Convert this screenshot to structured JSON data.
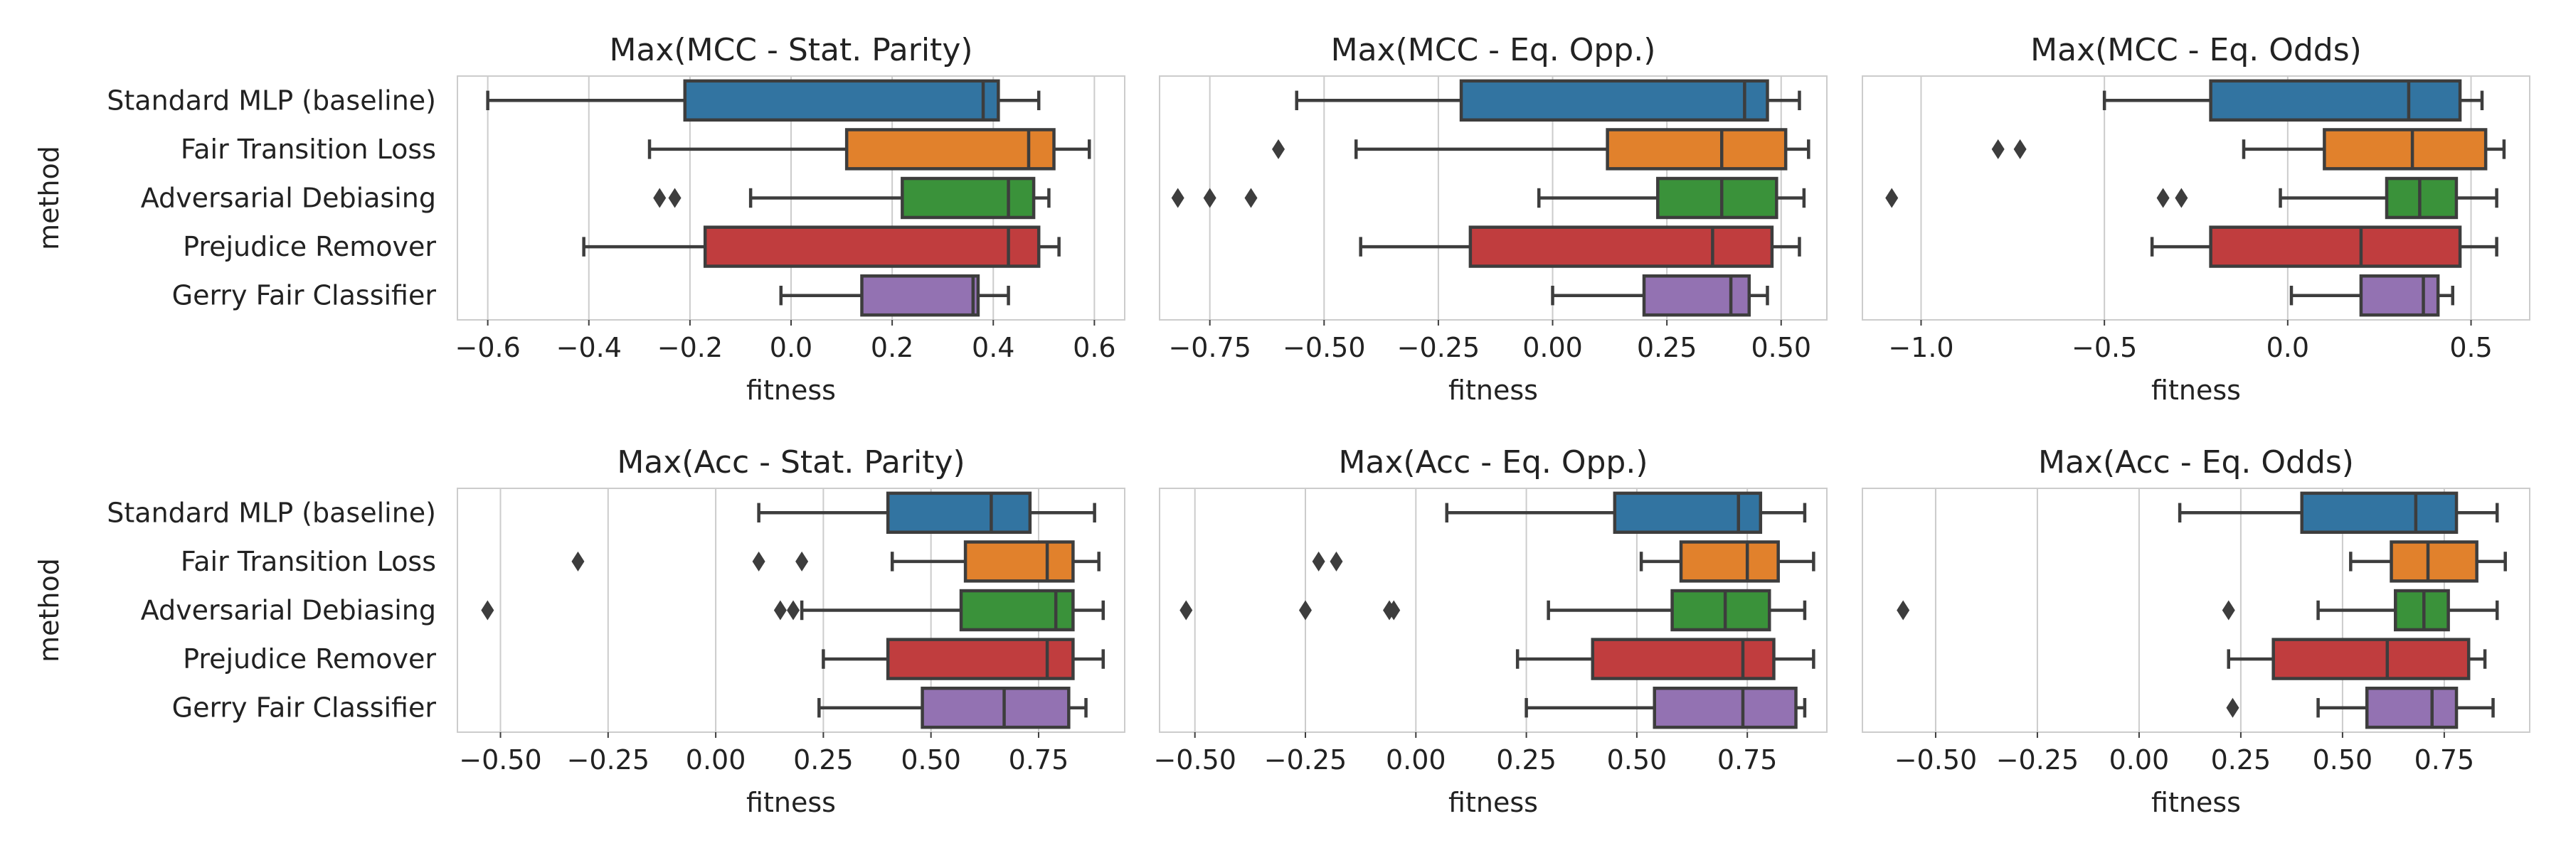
{
  "figure": {
    "ylabel_shared": "method"
  },
  "chart_data": [
    {
      "type": "box",
      "title": "Max(MCC - Stat. Parity)",
      "xlabel": "fitness",
      "ylabel": "method",
      "xlim": [
        -0.66,
        0.66
      ],
      "xticks": [
        -0.6,
        -0.4,
        -0.2,
        0.0,
        0.2,
        0.4,
        0.6
      ],
      "xtick_labels": [
        "−0.6",
        "−0.4",
        "−0.2",
        "0.0",
        "0.2",
        "0.4",
        "0.6"
      ],
      "grid": true,
      "categories": [
        "Standard MLP (baseline)",
        "Fair Transition Loss",
        "Adversarial Debiasing",
        "Prejudice Remover",
        "Gerry Fair Classifier"
      ],
      "boxes": [
        {
          "whislo": -0.6,
          "q1": -0.21,
          "med": 0.38,
          "q3": 0.41,
          "whishi": 0.49,
          "fliers": []
        },
        {
          "whislo": -0.28,
          "q1": 0.11,
          "med": 0.47,
          "q3": 0.52,
          "whishi": 0.59,
          "fliers": []
        },
        {
          "whislo": -0.08,
          "q1": 0.22,
          "med": 0.43,
          "q3": 0.48,
          "whishi": 0.51,
          "fliers": [
            -0.26,
            -0.23
          ]
        },
        {
          "whislo": -0.41,
          "q1": -0.17,
          "med": 0.43,
          "q3": 0.49,
          "whishi": 0.53,
          "fliers": []
        },
        {
          "whislo": -0.02,
          "q1": 0.14,
          "med": 0.36,
          "q3": 0.37,
          "whishi": 0.43,
          "fliers": []
        }
      ]
    },
    {
      "type": "box",
      "title": "Max(MCC - Eq. Opp.)",
      "xlabel": "fitness",
      "ylabel": "",
      "xlim": [
        -0.86,
        0.6
      ],
      "xticks": [
        -0.75,
        -0.5,
        -0.25,
        0.0,
        0.25,
        0.5
      ],
      "xtick_labels": [
        "−0.75",
        "−0.50",
        "−0.25",
        "0.00",
        "0.25",
        "0.50"
      ],
      "grid": true,
      "categories": [
        "Standard MLP (baseline)",
        "Fair Transition Loss",
        "Adversarial Debiasing",
        "Prejudice Remover",
        "Gerry Fair Classifier"
      ],
      "boxes": [
        {
          "whislo": -0.56,
          "q1": -0.2,
          "med": 0.42,
          "q3": 0.47,
          "whishi": 0.54,
          "fliers": []
        },
        {
          "whislo": -0.43,
          "q1": 0.12,
          "med": 0.37,
          "q3": 0.51,
          "whishi": 0.56,
          "fliers": [
            -0.6
          ]
        },
        {
          "whislo": -0.03,
          "q1": 0.23,
          "med": 0.37,
          "q3": 0.49,
          "whishi": 0.55,
          "fliers": [
            -0.82,
            -0.75,
            -0.66
          ]
        },
        {
          "whislo": -0.42,
          "q1": -0.18,
          "med": 0.35,
          "q3": 0.48,
          "whishi": 0.54,
          "fliers": []
        },
        {
          "whislo": 0.0,
          "q1": 0.2,
          "med": 0.39,
          "q3": 0.43,
          "whishi": 0.47,
          "fliers": []
        }
      ]
    },
    {
      "type": "box",
      "title": "Max(MCC - Eq. Odds)",
      "xlabel": "fitness",
      "ylabel": "",
      "xlim": [
        -1.16,
        0.66
      ],
      "xticks": [
        -1.0,
        -0.5,
        0.0,
        0.5
      ],
      "xtick_labels": [
        "−1.0",
        "−0.5",
        "0.0",
        "0.5"
      ],
      "grid": true,
      "categories": [
        "Standard MLP (baseline)",
        "Fair Transition Loss",
        "Adversarial Debiasing",
        "Prejudice Remover",
        "Gerry Fair Classifier"
      ],
      "boxes": [
        {
          "whislo": -0.5,
          "q1": -0.21,
          "med": 0.33,
          "q3": 0.47,
          "whishi": 0.53,
          "fliers": []
        },
        {
          "whislo": -0.12,
          "q1": 0.1,
          "med": 0.34,
          "q3": 0.54,
          "whishi": 0.59,
          "fliers": [
            -0.79,
            -0.73
          ]
        },
        {
          "whislo": -0.02,
          "q1": 0.27,
          "med": 0.36,
          "q3": 0.46,
          "whishi": 0.57,
          "fliers": [
            -1.08,
            -0.34,
            -0.29
          ]
        },
        {
          "whislo": -0.37,
          "q1": -0.21,
          "med": 0.2,
          "q3": 0.47,
          "whishi": 0.57,
          "fliers": []
        },
        {
          "whislo": 0.01,
          "q1": 0.2,
          "med": 0.37,
          "q3": 0.41,
          "whishi": 0.45,
          "fliers": []
        }
      ]
    },
    {
      "type": "box",
      "title": "Max(Acc - Stat. Parity)",
      "xlabel": "fitness",
      "ylabel": "method",
      "xlim": [
        -0.6,
        0.95
      ],
      "xticks": [
        -0.5,
        -0.25,
        0.0,
        0.25,
        0.5,
        0.75
      ],
      "xtick_labels": [
        "−0.50",
        "−0.25",
        "0.00",
        "0.25",
        "0.50",
        "0.75"
      ],
      "grid": true,
      "categories": [
        "Standard MLP (baseline)",
        "Fair Transition Loss",
        "Adversarial Debiasing",
        "Prejudice Remover",
        "Gerry Fair Classifier"
      ],
      "boxes": [
        {
          "whislo": 0.1,
          "q1": 0.4,
          "med": 0.64,
          "q3": 0.73,
          "whishi": 0.88,
          "fliers": []
        },
        {
          "whislo": 0.41,
          "q1": 0.58,
          "med": 0.77,
          "q3": 0.83,
          "whishi": 0.89,
          "fliers": [
            -0.32,
            0.1,
            0.2
          ]
        },
        {
          "whislo": 0.2,
          "q1": 0.57,
          "med": 0.79,
          "q3": 0.83,
          "whishi": 0.9,
          "fliers": [
            -0.53,
            0.15,
            0.18
          ]
        },
        {
          "whislo": 0.25,
          "q1": 0.4,
          "med": 0.77,
          "q3": 0.83,
          "whishi": 0.9,
          "fliers": []
        },
        {
          "whislo": 0.24,
          "q1": 0.48,
          "med": 0.67,
          "q3": 0.82,
          "whishi": 0.86,
          "fliers": []
        }
      ]
    },
    {
      "type": "box",
      "title": "Max(Acc - Eq. Opp.)",
      "xlabel": "fitness",
      "ylabel": "",
      "xlim": [
        -0.58,
        0.93
      ],
      "xticks": [
        -0.5,
        -0.25,
        0.0,
        0.25,
        0.5,
        0.75
      ],
      "xtick_labels": [
        "−0.50",
        "−0.25",
        "0.00",
        "0.25",
        "0.50",
        "0.75"
      ],
      "grid": true,
      "categories": [
        "Standard MLP (baseline)",
        "Fair Transition Loss",
        "Adversarial Debiasing",
        "Prejudice Remover",
        "Gerry Fair Classifier"
      ],
      "boxes": [
        {
          "whislo": 0.07,
          "q1": 0.45,
          "med": 0.73,
          "q3": 0.78,
          "whishi": 0.88,
          "fliers": []
        },
        {
          "whislo": 0.51,
          "q1": 0.6,
          "med": 0.75,
          "q3": 0.82,
          "whishi": 0.9,
          "fliers": [
            -0.22,
            -0.18
          ]
        },
        {
          "whislo": 0.3,
          "q1": 0.58,
          "med": 0.7,
          "q3": 0.8,
          "whishi": 0.88,
          "fliers": [
            -0.52,
            -0.25,
            -0.06,
            -0.05
          ]
        },
        {
          "whislo": 0.23,
          "q1": 0.4,
          "med": 0.74,
          "q3": 0.81,
          "whishi": 0.9,
          "fliers": []
        },
        {
          "whislo": 0.25,
          "q1": 0.54,
          "med": 0.74,
          "q3": 0.86,
          "whishi": 0.88,
          "fliers": []
        }
      ]
    },
    {
      "type": "box",
      "title": "Max(Acc - Eq. Odds)",
      "xlabel": "fitness",
      "ylabel": "",
      "xlim": [
        -0.68,
        0.96
      ],
      "xticks": [
        -0.5,
        -0.25,
        0.0,
        0.25,
        0.5,
        0.75
      ],
      "xtick_labels": [
        "−0.50",
        "−0.25",
        "0.00",
        "0.25",
        "0.50",
        "0.75"
      ],
      "grid": true,
      "categories": [
        "Standard MLP (baseline)",
        "Fair Transition Loss",
        "Adversarial Debiasing",
        "Prejudice Remover",
        "Gerry Fair Classifier"
      ],
      "boxes": [
        {
          "whislo": 0.1,
          "q1": 0.4,
          "med": 0.68,
          "q3": 0.78,
          "whishi": 0.88,
          "fliers": []
        },
        {
          "whislo": 0.52,
          "q1": 0.62,
          "med": 0.71,
          "q3": 0.83,
          "whishi": 0.9,
          "fliers": []
        },
        {
          "whislo": 0.44,
          "q1": 0.63,
          "med": 0.7,
          "q3": 0.76,
          "whishi": 0.88,
          "fliers": [
            -0.58,
            0.22
          ]
        },
        {
          "whislo": 0.22,
          "q1": 0.33,
          "med": 0.61,
          "q3": 0.81,
          "whishi": 0.85,
          "fliers": []
        },
        {
          "whislo": 0.44,
          "q1": 0.56,
          "med": 0.72,
          "q3": 0.78,
          "whishi": 0.87,
          "fliers": [
            0.23
          ]
        }
      ]
    }
  ],
  "colors": {
    "method_palette": [
      "#3274a1",
      "#e1812c",
      "#3a923a",
      "#c03d3e",
      "#9372b2"
    ]
  }
}
